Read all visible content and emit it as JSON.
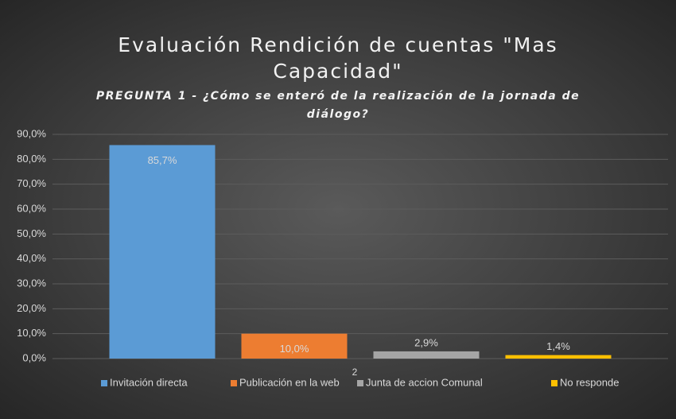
{
  "chart_data": {
    "type": "bar",
    "title": "Evaluación Rendición de cuentas \"Mas Capacidad\"",
    "subtitle": "PREGUNTA 1 - ¿Cómo se enteró de la realización de la jornada de diálogo?",
    "categories": [
      "2"
    ],
    "series": [
      {
        "name": "Invitación directa",
        "color": "#5b9bd5",
        "values": [
          85.7
        ],
        "value_labels": [
          "85,7%"
        ]
      },
      {
        "name": "Publicación en la web",
        "color": "#ed7d31",
        "values": [
          10.0
        ],
        "value_labels": [
          "10,0%"
        ]
      },
      {
        "name": "Junta de accion Comunal",
        "color": "#a5a5a5",
        "values": [
          2.9
        ],
        "value_labels": [
          "2,9%"
        ]
      },
      {
        "name": "No responde",
        "color": "#ffc000",
        "values": [
          1.4
        ],
        "value_labels": [
          "1,4%"
        ]
      }
    ],
    "ylim": [
      0,
      90
    ],
    "yticks": [
      {
        "value": 0,
        "label": "0,0%"
      },
      {
        "value": 10,
        "label": "10,0%"
      },
      {
        "value": 20,
        "label": "20,0%"
      },
      {
        "value": 30,
        "label": "30,0%"
      },
      {
        "value": 40,
        "label": "40,0%"
      },
      {
        "value": 50,
        "label": "50,0%"
      },
      {
        "value": 60,
        "label": "60,0%"
      },
      {
        "value": 70,
        "label": "70,0%"
      },
      {
        "value": 80,
        "label": "80,0%"
      },
      {
        "value": 90,
        "label": "90,0%"
      }
    ],
    "grid": true,
    "legend": "bottom"
  }
}
